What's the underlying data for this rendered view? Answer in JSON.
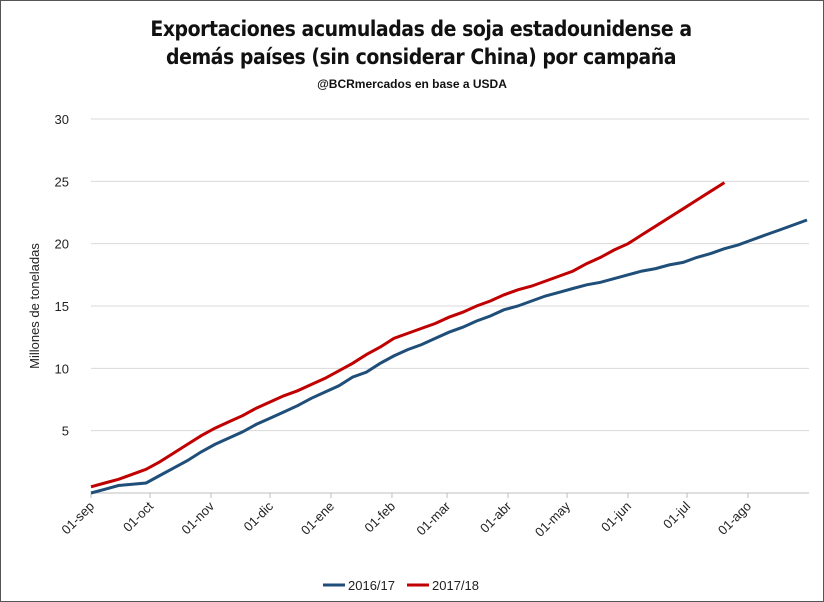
{
  "chart_data": {
    "type": "line",
    "title": "Exportaciones acumuladas de soja estadounidense a demás países (sin considerar China) por campaña",
    "subtitle": "@BCRmercados en base a USDA",
    "y_label": "Millones de toneladas",
    "xlim": [
      0,
      365
    ],
    "xticks": [
      {
        "value": 0,
        "label": "01-sep"
      },
      {
        "value": 30,
        "label": "01-oct"
      },
      {
        "value": 61,
        "label": "01-nov"
      },
      {
        "value": 91,
        "label": "01-dic"
      },
      {
        "value": 122,
        "label": "01-ene"
      },
      {
        "value": 153,
        "label": "01-feb"
      },
      {
        "value": 181,
        "label": "01-mar"
      },
      {
        "value": 212,
        "label": "01-abr"
      },
      {
        "value": 242,
        "label": "01-may"
      },
      {
        "value": 273,
        "label": "01-jun"
      },
      {
        "value": 303,
        "label": "01-jul"
      },
      {
        "value": 334,
        "label": "01-ago"
      }
    ],
    "ylim": [
      0,
      30
    ],
    "yticks": [
      5,
      10,
      15,
      20,
      25,
      30
    ],
    "grid": true,
    "legend": "bottom",
    "series": [
      {
        "name": "2016/17",
        "color": "#1f4e79",
        "x": [
          0,
          7,
          14,
          21,
          28,
          35,
          42,
          49,
          56,
          63,
          70,
          77,
          84,
          91,
          98,
          105,
          112,
          119,
          126,
          133,
          140,
          147,
          154,
          161,
          168,
          175,
          182,
          189,
          196,
          203,
          210,
          217,
          224,
          231,
          238,
          245,
          252,
          259,
          266,
          273,
          280,
          287,
          294,
          301,
          308,
          315,
          322,
          329,
          336,
          343,
          350,
          357,
          364
        ],
        "values": [
          0,
          0.3,
          0.6,
          0.7,
          0.8,
          1.4,
          2.0,
          2.6,
          3.3,
          3.9,
          4.4,
          4.9,
          5.5,
          6.0,
          6.5,
          7.0,
          7.6,
          8.1,
          8.6,
          9.3,
          9.7,
          10.4,
          11.0,
          11.5,
          11.9,
          12.4,
          12.9,
          13.3,
          13.8,
          14.2,
          14.7,
          15.0,
          15.4,
          15.8,
          16.1,
          16.4,
          16.7,
          16.9,
          17.2,
          17.5,
          17.8,
          18.0,
          18.3,
          18.5,
          18.9,
          19.2,
          19.6,
          19.9,
          20.3,
          20.7,
          21.1,
          21.5,
          21.9
        ]
      },
      {
        "name": "2017/18",
        "color": "#c00000",
        "x": [
          0,
          7,
          14,
          21,
          28,
          35,
          42,
          49,
          56,
          63,
          70,
          77,
          84,
          91,
          98,
          105,
          112,
          119,
          126,
          133,
          140,
          147,
          154,
          161,
          168,
          175,
          182,
          189,
          196,
          203,
          210,
          217,
          224,
          231,
          238,
          245,
          252,
          259,
          266,
          273,
          280,
          287,
          294,
          301,
          308,
          315,
          322
        ],
        "values": [
          0.5,
          0.8,
          1.1,
          1.5,
          1.9,
          2.5,
          3.2,
          3.9,
          4.6,
          5.2,
          5.7,
          6.2,
          6.8,
          7.3,
          7.8,
          8.2,
          8.7,
          9.2,
          9.8,
          10.4,
          11.1,
          11.7,
          12.4,
          12.8,
          13.2,
          13.6,
          14.1,
          14.5,
          15.0,
          15.4,
          15.9,
          16.3,
          16.6,
          17.0,
          17.4,
          17.8,
          18.4,
          18.9,
          19.5,
          20.0,
          20.7,
          21.4,
          22.1,
          22.8,
          23.5,
          24.2,
          24.9
        ]
      }
    ]
  }
}
